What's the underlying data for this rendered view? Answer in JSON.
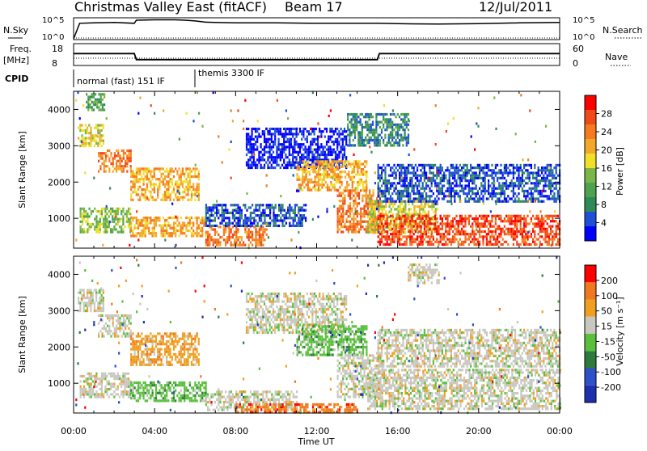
{
  "header": {
    "station": "Christmas Valley East (fitACF)",
    "beam": "Beam 17",
    "date": "12/Jul/2011"
  },
  "panels": {
    "nsky_label": "N.Sky",
    "nsearch_label": "N.Search",
    "noise_ticks": [
      "10^5",
      "10^0"
    ],
    "freq_label_1": "Freq.",
    "freq_label_2": "[MHz]",
    "freq_ticks": [
      "18",
      "8"
    ],
    "nave_label": "Nave",
    "nave_ticks": [
      "60",
      "0"
    ],
    "cpid_label": "CPID",
    "cpid_segments": [
      "normal (fast) 151 IF",
      "themis 3300 IF"
    ]
  },
  "colorbars": {
    "power": {
      "label": "Power [dB]",
      "ticks": [
        "28",
        "24",
        "20",
        "16",
        "12",
        "8",
        "4"
      ],
      "colors": [
        "#0000ff",
        "#1e4fd6",
        "#2e8b57",
        "#4fa34f",
        "#7ab648",
        "#f0e02a",
        "#f2a82a",
        "#f57a20",
        "#f04a18",
        "#ff0000"
      ]
    },
    "velocity": {
      "label": "Velocity [m s⁻¹]",
      "ticks": [
        "200",
        "100",
        "50",
        "15",
        "-15",
        "-50",
        "-100",
        "-200"
      ],
      "colors": [
        "#1e2fb0",
        "#2e50c8",
        "#2e7a3c",
        "#59c03c",
        "#c8c8c0",
        "#f0a020",
        "#f07820",
        "#ff0000"
      ]
    }
  },
  "chart_data": [
    {
      "type": "line",
      "name": "N.Sky noise",
      "x_hours": [
        0,
        0.3,
        1,
        2,
        3,
        3.1,
        4,
        5,
        5.5,
        6,
        6.5,
        7,
        8,
        10,
        12,
        14,
        15,
        16,
        18,
        20,
        22,
        24
      ],
      "values": [
        0,
        4.0,
        4.1,
        4.2,
        4.0,
        4.8,
        4.9,
        4.9,
        4.8,
        4.6,
        4.3,
        4.2,
        4.1,
        4.1,
        4.0,
        4.0,
        4.0,
        3.9,
        3.8,
        3.9,
        4.1,
        4.2
      ]
    },
    {
      "type": "line",
      "name": "Freq.",
      "ylim": [
        8,
        18
      ],
      "x_hours": [
        0,
        3,
        3.1,
        15,
        15.1,
        24
      ],
      "values": [
        13.5,
        13.5,
        10.5,
        10.5,
        13.5,
        13.5
      ]
    },
    {
      "type": "heatmap",
      "name": "Power",
      "xlabel": "",
      "ylabel": "Slant Range [km]",
      "xlim": [
        0,
        24
      ],
      "ylim": [
        180,
        4500
      ],
      "x_ticks": [
        "00:00",
        "04:00",
        "08:00",
        "12:00",
        "16:00",
        "20:00",
        "00:00"
      ],
      "y_ticks": [
        1000,
        2000,
        3000,
        4000
      ],
      "regions": [
        {
          "t0": 0.2,
          "t1": 1.5,
          "r0": 3000,
          "r1": 3600,
          "level": 5
        },
        {
          "t0": 1.2,
          "t1": 2.8,
          "r0": 2300,
          "r1": 2900,
          "level": 7
        },
        {
          "t0": 0.3,
          "t1": 2.8,
          "r0": 600,
          "r1": 1300,
          "level": 4
        },
        {
          "t0": 0.6,
          "t1": 1.5,
          "r0": 4000,
          "r1": 4450,
          "level": 3
        },
        {
          "t0": 2.8,
          "t1": 6.2,
          "r0": 1500,
          "r1": 2400,
          "level": 6
        },
        {
          "t0": 2.8,
          "t1": 6.5,
          "r0": 550,
          "r1": 1050,
          "level": 6
        },
        {
          "t0": 6.5,
          "t1": 9.5,
          "r0": 250,
          "r1": 800,
          "level": 7
        },
        {
          "t0": 6.5,
          "t1": 11.5,
          "r0": 800,
          "r1": 1400,
          "level": 1
        },
        {
          "t0": 8.5,
          "t1": 13.5,
          "r0": 2400,
          "r1": 3500,
          "level": 0
        },
        {
          "t0": 11.0,
          "t1": 14.5,
          "r0": 1800,
          "r1": 2600,
          "level": 6
        },
        {
          "t0": 13.0,
          "t1": 15.2,
          "r0": 600,
          "r1": 1800,
          "level": 7
        },
        {
          "t0": 14.5,
          "t1": 18.0,
          "r0": 600,
          "r1": 1500,
          "level": 5
        },
        {
          "t0": 15.0,
          "t1": 24.0,
          "r0": 300,
          "r1": 1100,
          "level": 8
        },
        {
          "t0": 15.0,
          "t1": 24.0,
          "r0": 1500,
          "r1": 2500,
          "level": 1
        },
        {
          "t0": 13.5,
          "t1": 16.5,
          "r0": 3000,
          "r1": 3900,
          "level": 2
        },
        {
          "t0": 0,
          "t1": 24,
          "r0": 180,
          "r1": 4500,
          "level": 0,
          "sparse": true
        }
      ]
    },
    {
      "type": "heatmap",
      "name": "Velocity",
      "xlabel": "Time UT",
      "ylabel": "Slant Range [km]",
      "xlim": [
        0,
        24
      ],
      "ylim": [
        180,
        4500
      ],
      "x_ticks": [
        "00:00",
        "04:00",
        "08:00",
        "12:00",
        "16:00",
        "20:00",
        "00:00"
      ],
      "y_ticks": [
        1000,
        2000,
        3000,
        4000
      ],
      "regions": [
        {
          "t0": 0.2,
          "t1": 1.5,
          "r0": 3000,
          "r1": 3600,
          "level": 4
        },
        {
          "t0": 1.2,
          "t1": 2.8,
          "r0": 2300,
          "r1": 2900,
          "level": 4
        },
        {
          "t0": 0.3,
          "t1": 2.8,
          "r0": 600,
          "r1": 1300,
          "level": 4
        },
        {
          "t0": 2.8,
          "t1": 6.2,
          "r0": 1500,
          "r1": 2400,
          "level": 5
        },
        {
          "t0": 2.8,
          "t1": 6.5,
          "r0": 550,
          "r1": 1050,
          "level": 3
        },
        {
          "t0": 6.5,
          "t1": 11.0,
          "r0": 250,
          "r1": 800,
          "level": 4
        },
        {
          "t0": 8.0,
          "t1": 14.0,
          "r0": 200,
          "r1": 450,
          "level": 6
        },
        {
          "t0": 8.5,
          "t1": 13.5,
          "r0": 2400,
          "r1": 3500,
          "level": 4
        },
        {
          "t0": 11.0,
          "t1": 14.5,
          "r0": 1800,
          "r1": 2600,
          "level": 3
        },
        {
          "t0": 13.0,
          "t1": 15.2,
          "r0": 600,
          "r1": 1800,
          "level": 4
        },
        {
          "t0": 14.5,
          "t1": 24.0,
          "r0": 300,
          "r1": 1400,
          "level": 4
        },
        {
          "t0": 15.0,
          "t1": 24.0,
          "r0": 1500,
          "r1": 2500,
          "level": 4
        },
        {
          "t0": 16.5,
          "t1": 18.0,
          "r0": 3800,
          "r1": 4300,
          "level": 4
        },
        {
          "t0": 0,
          "t1": 24,
          "r0": 180,
          "r1": 4500,
          "level": 0,
          "sparse": true
        }
      ]
    }
  ]
}
